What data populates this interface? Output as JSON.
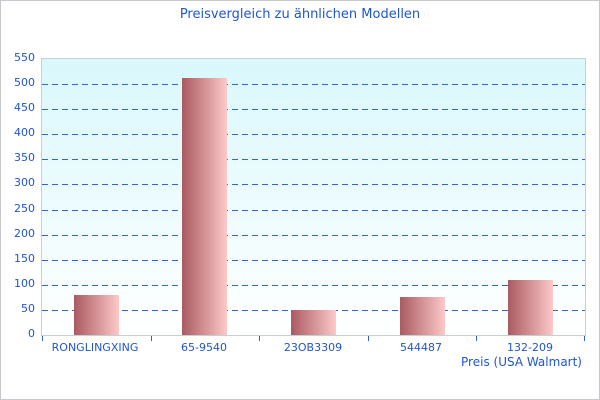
{
  "window": {
    "background": "#ffffff",
    "border_color": "#c4c8cc"
  },
  "chart_data": {
    "type": "bar",
    "title": "Preisvergleich zu ähnlichen Modellen",
    "categories": [
      "RONGLINGXING",
      "65-9540",
      "23OB3309",
      "544487",
      "132-209"
    ],
    "values": [
      80,
      512,
      50,
      76,
      110
    ],
    "xlabel": "Preis (USA Walmart)",
    "ylabel": "",
    "ylim": [
      0,
      550
    ],
    "yticks": [
      0,
      50,
      100,
      150,
      200,
      250,
      300,
      350,
      400,
      450,
      500,
      550
    ],
    "grid": "horizontal dashed lines at every 50 from 50 to 500",
    "legend_position": "none",
    "styles": {
      "title_color": "#1e56d0",
      "axis_label_color": "#1e56d0",
      "tick_label_color": "#2156c8",
      "gridline_color": "#3366cc",
      "tick_mark_color": "#2f62c4",
      "bar_gradient_left": "#aa5a61",
      "bar_gradient_right": "#fdc9c9",
      "plot_bg_top": "#d9f8fc",
      "plot_bg_bottom": "#ffffff",
      "plot_border_color": "#c9ced3"
    }
  }
}
